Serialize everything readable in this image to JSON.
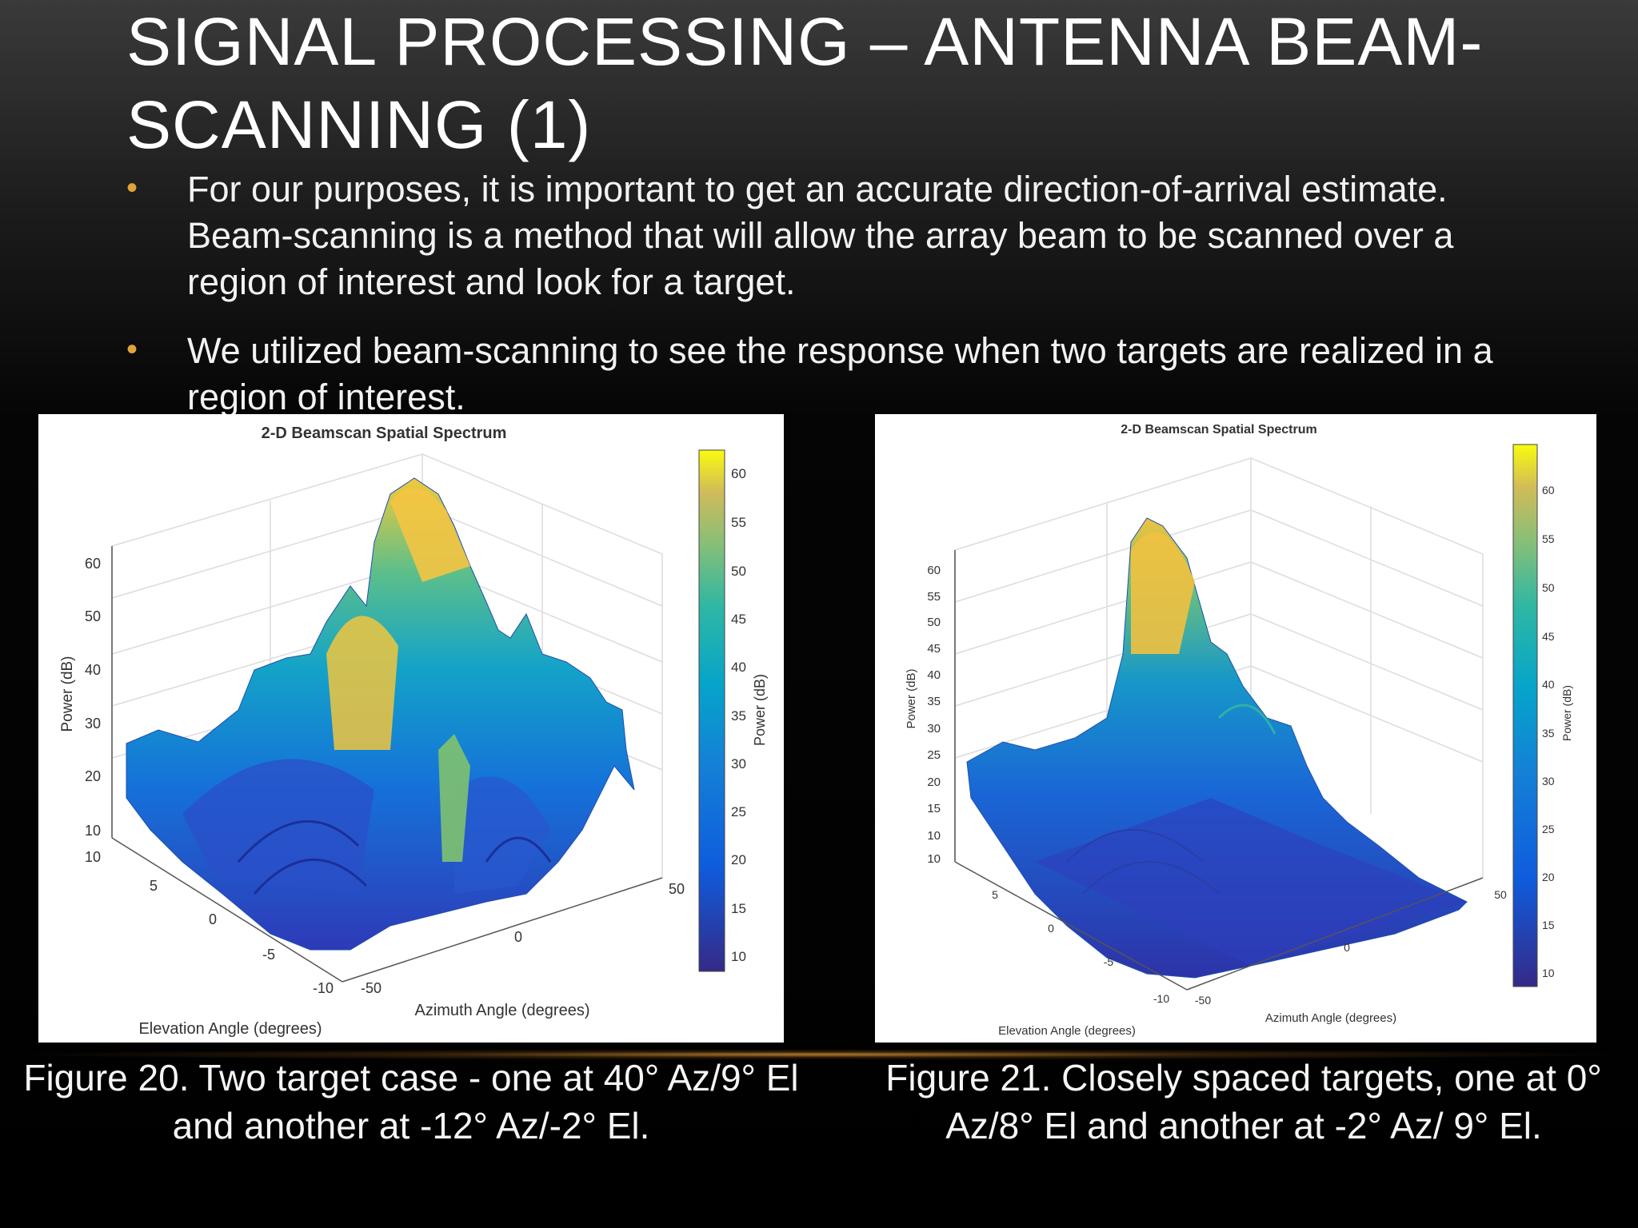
{
  "slide": {
    "title": "Signal Processing – Antenna Beam-scanning (1)",
    "bullets": [
      "For our purposes, it is important to get an accurate direction-of-arrival estimate.  Beam-scanning is a method that will allow the array beam to be scanned over a region of interest and look for a target.",
      "We utilized beam-scanning to see the response when two targets are realized in a region of interest."
    ],
    "bullet_marker": "•",
    "accent_color": "#e0a33a"
  },
  "figures": [
    {
      "chart_title": "2-D Beamscan Spatial Spectrum",
      "z_ticks": [
        "10",
        "10",
        "20",
        "30",
        "40",
        "50",
        "60"
      ],
      "z_label": "Power (dB)",
      "elevation_ticks": [
        "5",
        "0",
        "-5",
        "-10"
      ],
      "elevation_label": "Elevation Angle (degrees)",
      "azimuth_ticks": [
        "-50",
        "0",
        "50"
      ],
      "azimuth_label": "Azimuth Angle (degrees)",
      "colorbar_ticks": [
        "60",
        "55",
        "50",
        "45",
        "40",
        "35",
        "30",
        "25",
        "20",
        "15",
        "10"
      ],
      "colorbar_label": "Power (dB)",
      "caption": "Figure 20. Two target case - one at 40° Az/9° El and another at -12° Az/-2° El."
    },
    {
      "chart_title": "2-D Beamscan Spatial Spectrum",
      "z_ticks": [
        "60",
        "55",
        "50",
        "45",
        "40",
        "35",
        "30",
        "25",
        "20",
        "15",
        "10",
        "10"
      ],
      "z_label": "Power (dB)",
      "elevation_ticks": [
        "5",
        "0",
        "-5",
        "-10"
      ],
      "elevation_label": "Elevation Angle (degrees)",
      "azimuth_ticks": [
        "-50",
        "0",
        "50"
      ],
      "azimuth_label": "Azimuth Angle (degrees)",
      "colorbar_ticks": [
        "60",
        "55",
        "50",
        "45",
        "40",
        "35",
        "30",
        "25",
        "20",
        "15",
        "10"
      ],
      "colorbar_label": "Power (dB)",
      "caption": "Figure 21. Closely spaced targets, one at 0° Az/8° El and another at -2° Az/ 9° El."
    }
  ],
  "chart_data": [
    {
      "type": "surface",
      "title": "2-D Beamscan Spatial Spectrum",
      "xlabel": "Azimuth Angle (degrees)",
      "ylabel": "Elevation Angle (degrees)",
      "zlabel": "Power (dB)",
      "xlim": [
        -50,
        50
      ],
      "ylim": [
        -10,
        10
      ],
      "zlim": [
        10,
        60
      ],
      "colorbar_range": [
        10,
        62
      ],
      "colormap": "parula",
      "peaks": [
        {
          "azimuth": 40,
          "elevation": 9,
          "power_db": 62
        },
        {
          "azimuth": -12,
          "elevation": -2,
          "power_db": 53
        }
      ]
    },
    {
      "type": "surface",
      "title": "2-D Beamscan Spatial Spectrum",
      "xlabel": "Azimuth Angle (degrees)",
      "ylabel": "Elevation Angle (degrees)",
      "zlabel": "Power (dB)",
      "xlim": [
        -50,
        50
      ],
      "ylim": [
        -10,
        10
      ],
      "zlim": [
        10,
        60
      ],
      "colorbar_range": [
        10,
        64
      ],
      "colormap": "parula",
      "peaks": [
        {
          "azimuth": 0,
          "elevation": 8,
          "power_db": 63
        },
        {
          "azimuth": -2,
          "elevation": 9,
          "power_db": 62
        }
      ]
    }
  ]
}
